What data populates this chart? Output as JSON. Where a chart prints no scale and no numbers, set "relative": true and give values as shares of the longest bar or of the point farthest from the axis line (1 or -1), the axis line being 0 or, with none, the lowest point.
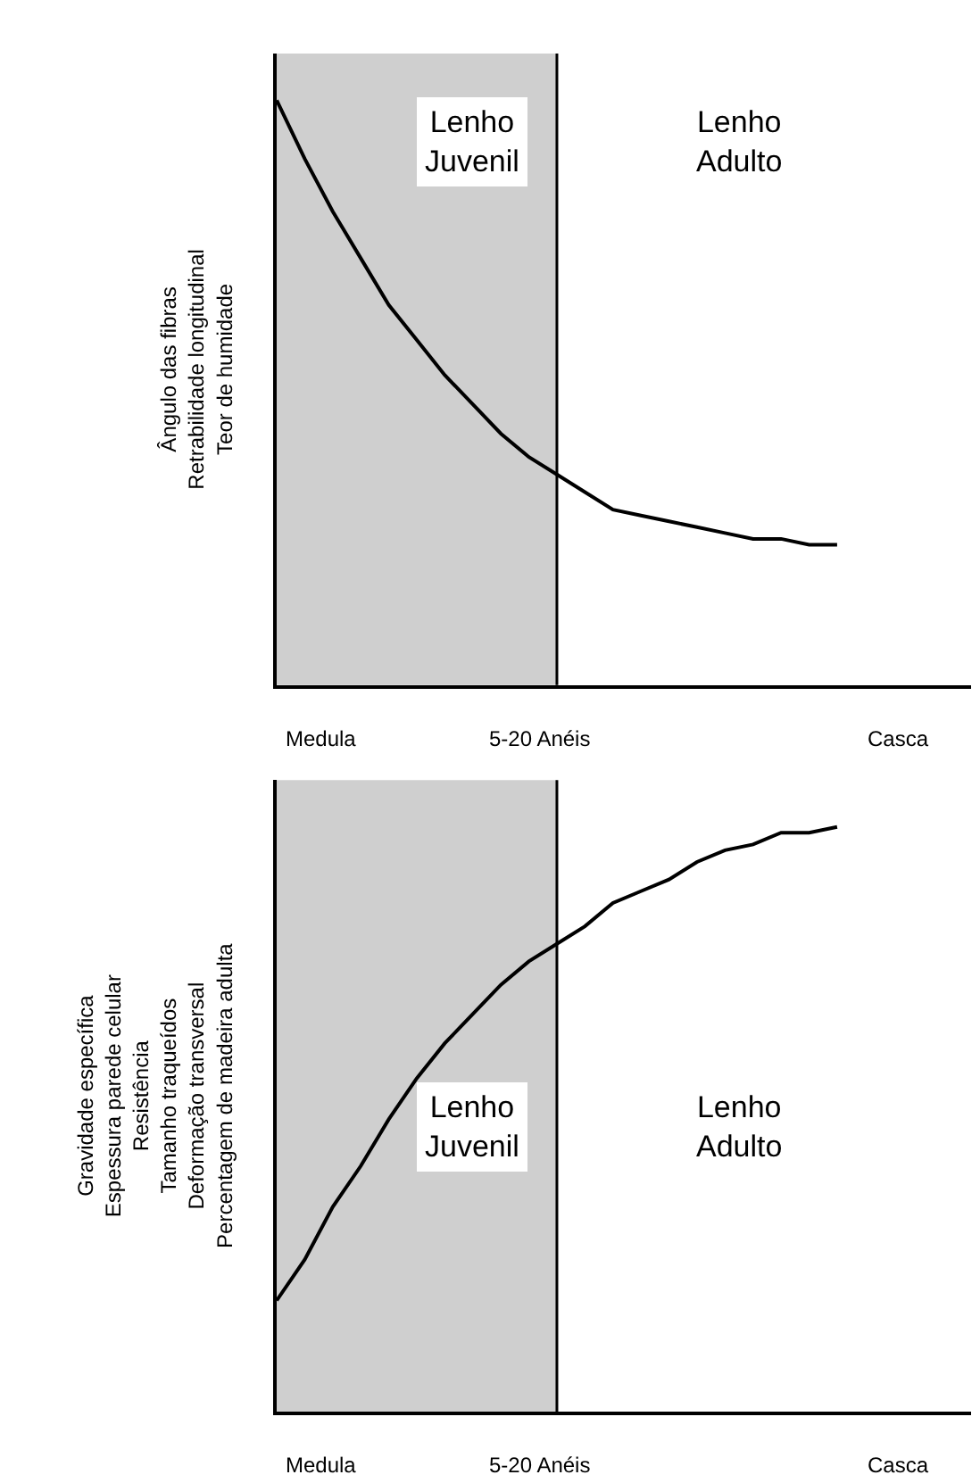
{
  "chart_data": [
    {
      "type": "line",
      "relative": true,
      "ylabel": "Ângulo das fibras\nRetrabilidade longitudinal\nTeor de humidade",
      "categories": [
        null,
        null,
        null,
        null,
        null,
        null,
        null,
        null,
        null,
        null,
        null,
        null,
        null,
        null,
        null,
        null,
        null,
        null,
        null,
        null,
        null
      ],
      "series": [
        {
          "color": "#000000",
          "values": [
            1.0,
            0.9,
            0.81,
            0.73,
            0.65,
            0.59,
            0.53,
            0.48,
            0.43,
            0.39,
            0.36,
            0.33,
            0.3,
            0.29,
            0.28,
            0.27,
            0.26,
            0.25,
            0.25,
            0.24,
            0.24
          ]
        }
      ],
      "annotations": [
        "Lenho\nJuvenil",
        "Lenho\nAdulto",
        "Medula",
        "5-20 Anéis",
        "Casca"
      ],
      "marker": "none",
      "line_style": "solid",
      "grid": false
    },
    {
      "type": "line",
      "relative": true,
      "ylabel": "Gravidade específica\nEspessura parede celular\nResistência\nTamanho traqueídos\nDeformação transversal\nPercentagem de madeira adulta",
      "categories": [
        null,
        null,
        null,
        null,
        null,
        null,
        null,
        null,
        null,
        null,
        null,
        null,
        null,
        null,
        null,
        null,
        null,
        null,
        null,
        null,
        null
      ],
      "series": [
        {
          "color": "#000000",
          "values": [
            0.19,
            0.26,
            0.35,
            0.42,
            0.5,
            0.57,
            0.63,
            0.68,
            0.73,
            0.77,
            0.8,
            0.83,
            0.87,
            0.89,
            0.91,
            0.94,
            0.96,
            0.97,
            0.99,
            0.99,
            1.0
          ]
        }
      ],
      "annotations": [
        "Lenho\nJuvenil",
        "Lenho\nAdulto",
        "Medula",
        "5-20 Anéis",
        "Casca"
      ],
      "marker": "none",
      "line_style": "solid",
      "grid": false
    }
  ]
}
